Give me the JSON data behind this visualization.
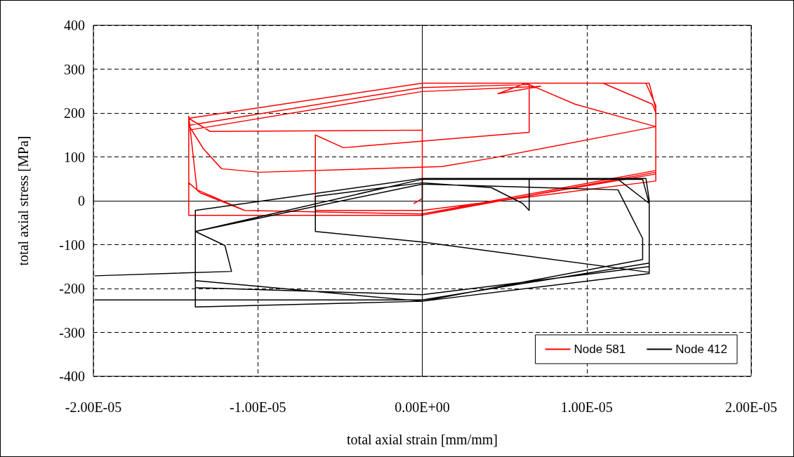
{
  "chart_data": {
    "type": "line",
    "xlabel": "total axial strain [mm/mm]",
    "ylabel": "total axial stress [MPa]",
    "xlim": [
      -2e-05,
      2e-05
    ],
    "xticks": [
      {
        "value": -2e-05,
        "label": "-2.00E-05"
      },
      {
        "value": -1e-05,
        "label": "-1.00E-05"
      },
      {
        "value": 0,
        "label": "0.00E+00"
      },
      {
        "value": 1e-05,
        "label": "1.00E-05"
      },
      {
        "value": 2e-05,
        "label": "2.00E-05"
      }
    ],
    "ylim": [
      -400,
      400
    ],
    "yticks": [
      -400,
      -300,
      -200,
      -100,
      0,
      100,
      200,
      300,
      400
    ],
    "grid": true,
    "legend": "bottom right",
    "marker": "none",
    "line_style": "solid",
    "series": [
      {
        "name": "Node 581",
        "color": "#ff0000",
        "x": [
          -5e-07,
          0,
          0,
          -1.29e-05,
          -1.42e-05,
          0,
          1.36e-05,
          1.42e-05,
          1.42e-05,
          0,
          -1.42e-05,
          -1.42e-05,
          -1.37e-05,
          -1.08e-05,
          0,
          1.42e-05,
          1.42e-05,
          1.38e-05,
          1.1e-05,
          1.4e-05,
          1.42e-05,
          1.42e-05,
          0,
          -6.5e-06,
          -6.5e-06,
          -4.8e-06,
          6.5e-06,
          6.5e-06,
          0,
          -1.42e-05,
          -1.33e-05,
          -1.22e-05,
          -9.9e-06,
          1.2e-06,
          4.2e-06,
          1.42e-05,
          9.3e-06,
          6.3e-06,
          4.6e-06,
          7.2e-06,
          0,
          -1.42e-05,
          -1.42e-05,
          -1.35e-05,
          -1.08e-05,
          0,
          1.42e-05
        ],
        "values": [
          -6,
          5,
          161,
          158,
          188,
          268,
          268,
          217,
          65,
          -33,
          -33,
          193,
          25,
          -22,
          -30,
          61,
          209,
          268,
          268,
          220,
          201,
          45,
          -22,
          -22,
          150,
          121,
          156,
          265,
          258,
          172,
          118,
          73,
          65,
          78,
          97,
          169,
          220,
          268,
          244,
          261,
          249,
          161,
          41,
          18,
          -22,
          -30,
          69
        ]
      },
      {
        "name": "Node 412",
        "color": "#000000",
        "x": [
          -1.99e-05,
          -1.16e-05,
          -1.2e-05,
          -1.38e-05,
          0,
          1.34e-05,
          1.38e-05,
          1.38e-05,
          0,
          -1.38e-05,
          -1.38e-05,
          0,
          1.36e-05,
          1.38e-05,
          1.38e-05,
          0,
          -6.5e-06,
          -6.5e-06,
          0,
          4.2e-06,
          6.1e-06,
          6.5e-06,
          6.5e-06,
          0,
          0,
          0,
          0,
          null,
          -1.99e-05,
          0,
          1.38e-05,
          1.38e-05,
          1.19e-05,
          1.38e-05,
          1.38e-05,
          0,
          -1.38e-05,
          -1.38e-05,
          0,
          1.19e-05,
          1.34e-05,
          1.34e-05,
          0,
          -1.38e-05
        ],
        "values": [
          -171,
          -161,
          -102,
          -70,
          49,
          49,
          -6,
          -166,
          -229,
          -242,
          -22,
          51,
          51,
          2,
          -163,
          -94,
          -70,
          10,
          41,
          30,
          -6,
          -22,
          49,
          49,
          -94,
          -169,
          -22,
          null,
          -226,
          -226,
          -142,
          -6,
          49,
          -6,
          -150,
          -214,
          -198,
          -70,
          38,
          25,
          -86,
          -134,
          -229,
          -182
        ]
      }
    ]
  }
}
